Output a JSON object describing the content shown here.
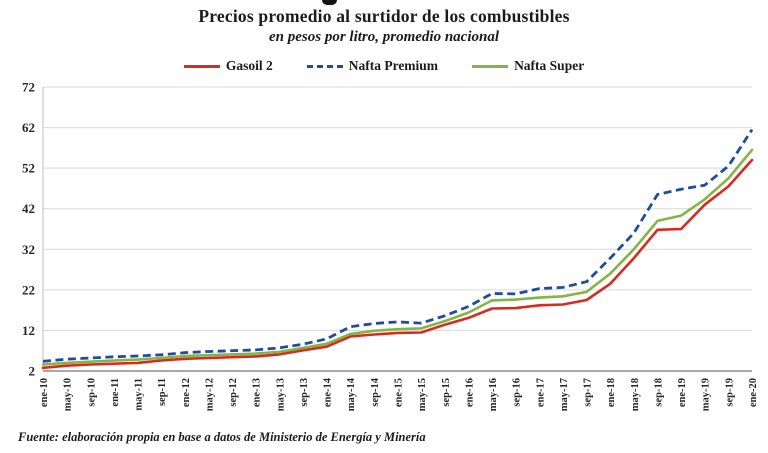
{
  "header": {
    "title": "Precios promedio al surtidor de los combustibles",
    "subtitle": "en pesos por litro, promedio nacional"
  },
  "chart_data": {
    "type": "line",
    "title": "Precios promedio al surtidor de los combustibles",
    "subtitle": "en pesos por litro, promedio nacional",
    "xlabel": "",
    "ylabel": "",
    "ylim": [
      2,
      72
    ],
    "yticks": [
      2,
      12,
      22,
      32,
      42,
      52,
      62,
      72
    ],
    "grid": "horizontal",
    "legend_position": "top",
    "x_label_rotation": -90,
    "categories": [
      "ene-10",
      "may-10",
      "sep-10",
      "ene-11",
      "may-11",
      "sep-11",
      "ene-12",
      "may-12",
      "sep-12",
      "ene-13",
      "may-13",
      "sep-13",
      "ene-14",
      "may-14",
      "sep-14",
      "ene-15",
      "may-15",
      "sep-15",
      "ene-16",
      "may-16",
      "sep-16",
      "ene-17",
      "may-17",
      "sep-17",
      "ene-18",
      "may-18",
      "sep-18",
      "ene-19",
      "may-19",
      "sep-19",
      "ene-20"
    ],
    "series": [
      {
        "name": "Gasoil 2",
        "color": "#d92a21",
        "line_style": "solid",
        "values": [
          2.8,
          3.3,
          3.6,
          3.8,
          4.0,
          4.6,
          5.0,
          5.2,
          5.4,
          5.6,
          6.1,
          7.1,
          8.0,
          10.5,
          11.0,
          11.4,
          11.5,
          13.4,
          15.1,
          17.4,
          17.5,
          18.2,
          18.4,
          19.5,
          23.5,
          29.8,
          36.8,
          37.0,
          43.0,
          47.5,
          54.0
        ]
      },
      {
        "name": "Nafta Premium",
        "color": "#1f4e99",
        "line_style": "dashed",
        "values": [
          4.4,
          4.9,
          5.2,
          5.5,
          5.7,
          6.0,
          6.5,
          6.8,
          7.0,
          7.2,
          7.7,
          8.6,
          9.9,
          12.9,
          13.7,
          14.1,
          13.8,
          15.6,
          17.9,
          21.1,
          21.0,
          22.3,
          22.6,
          24.0,
          29.8,
          36.0,
          45.5,
          46.8,
          47.8,
          52.5,
          61.5
        ]
      },
      {
        "name": "Nafta Super",
        "color": "#85b446",
        "line_style": "solid",
        "values": [
          3.6,
          4.0,
          4.3,
          4.6,
          4.8,
          5.2,
          5.7,
          5.9,
          6.1,
          6.3,
          6.7,
          7.7,
          8.7,
          11.1,
          11.9,
          12.3,
          12.5,
          14.3,
          16.4,
          19.4,
          19.6,
          20.1,
          20.4,
          21.5,
          26.0,
          32.0,
          39.0,
          40.3,
          44.3,
          49.5,
          56.5
        ]
      }
    ]
  },
  "footer": {
    "source": "Fuente: elaboración propia en base a datos de Ministerio de Energía y Minería"
  },
  "colors": {
    "grid": "#d9d9d9",
    "axis": "#8c8c8c",
    "left_axis": "#bfbfbf",
    "text": "#1b1b1b"
  }
}
